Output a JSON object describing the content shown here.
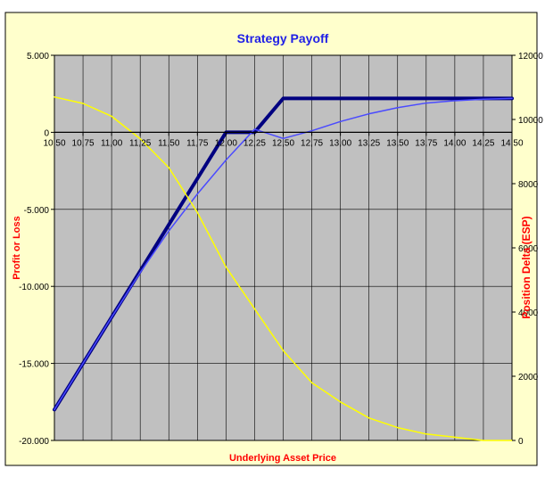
{
  "chart_data": {
    "type": "line",
    "title": "Strategy Payoff",
    "xlabel": "Underlying Asset Price",
    "ylabel": "Profit or Loss",
    "y2label": "Position Delta (ESP)",
    "x_ticks": [
      "10,50",
      "10,75",
      "11,00",
      "11,25",
      "11,50",
      "11,75",
      "12,00",
      "12,25",
      "12,50",
      "12,75",
      "13,00",
      "13,25",
      "13,50",
      "13,75",
      "14,00",
      "14,25",
      "14,50"
    ],
    "x": [
      10.5,
      10.75,
      11.0,
      11.25,
      11.5,
      11.75,
      12.0,
      12.25,
      12.5,
      12.75,
      13.0,
      13.25,
      13.5,
      13.75,
      14.0,
      14.25,
      14.5
    ],
    "xlim": [
      10.5,
      14.5
    ],
    "ylim": [
      -20000,
      5000
    ],
    "y_ticks": [
      5000,
      0,
      -5000,
      -10000,
      -15000,
      -20000
    ],
    "y_tick_labels": [
      "5.000",
      "0",
      "-5.000",
      "-10.000",
      "-15.000",
      "-20.000"
    ],
    "y2lim": [
      0,
      12000
    ],
    "y2_ticks": [
      0,
      2000,
      4000,
      6000,
      8000,
      10000,
      12000
    ],
    "y2_tick_labels": [
      "0",
      "2000",
      "4000",
      "6000",
      "8000",
      "10000",
      "12000"
    ],
    "grid": true,
    "legend": "none",
    "colors": {
      "plot_bg": "#c0c0c0",
      "chart_bg": "#ffffcc",
      "title": "#1f1fe6",
      "axis_label": "#ff0000",
      "payoff_expiry": "#000080",
      "payoff_today": "#4a4aff",
      "delta": "#ffff00"
    },
    "series": [
      {
        "axis": "left",
        "color": "#000080",
        "width": 4,
        "values": [
          -18000,
          -15000,
          -12000,
          -9000,
          -6000,
          -3000,
          0,
          0,
          2200,
          2200,
          2200,
          2200,
          2200,
          2200,
          2200,
          2200,
          2200
        ]
      },
      {
        "axis": "left",
        "color": "#4a4aff",
        "width": 1.5,
        "values": [
          -18000,
          -15000,
          -12000,
          -9100,
          -6400,
          -4000,
          -1800,
          200,
          -400,
          100,
          700,
          1200,
          1600,
          1900,
          2050,
          2150,
          2200
        ]
      },
      {
        "axis": "right",
        "color": "#ffff00",
        "width": 1.5,
        "values": [
          10700,
          10500,
          10100,
          9400,
          8500,
          7100,
          5400,
          4100,
          2800,
          1800,
          1200,
          700,
          400,
          200,
          100,
          0,
          0
        ]
      }
    ]
  }
}
